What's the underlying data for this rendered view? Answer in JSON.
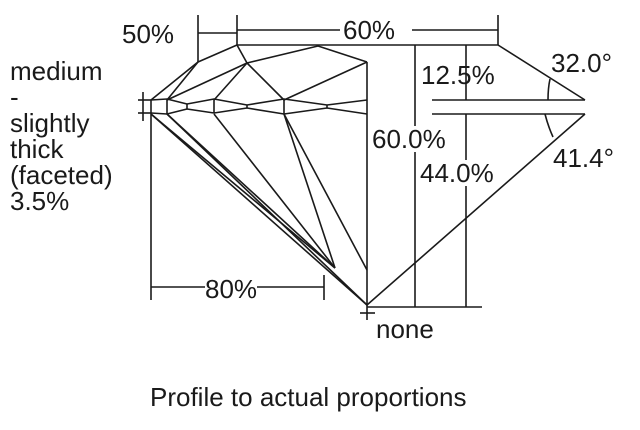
{
  "labels": {
    "crown_star": "50%",
    "table": "60%",
    "crown_height": "12.5%",
    "crown_angle": "32.0°",
    "total_depth": "60.0%",
    "pavilion_depth": "44.0%",
    "pavilion_angle": "41.4°",
    "lower_half": "80%",
    "culet": "none",
    "girdle": [
      "medium",
      "-",
      "slightly",
      "thick",
      "(faceted)",
      "3.5%"
    ]
  },
  "caption": "Profile to actual proportions"
}
